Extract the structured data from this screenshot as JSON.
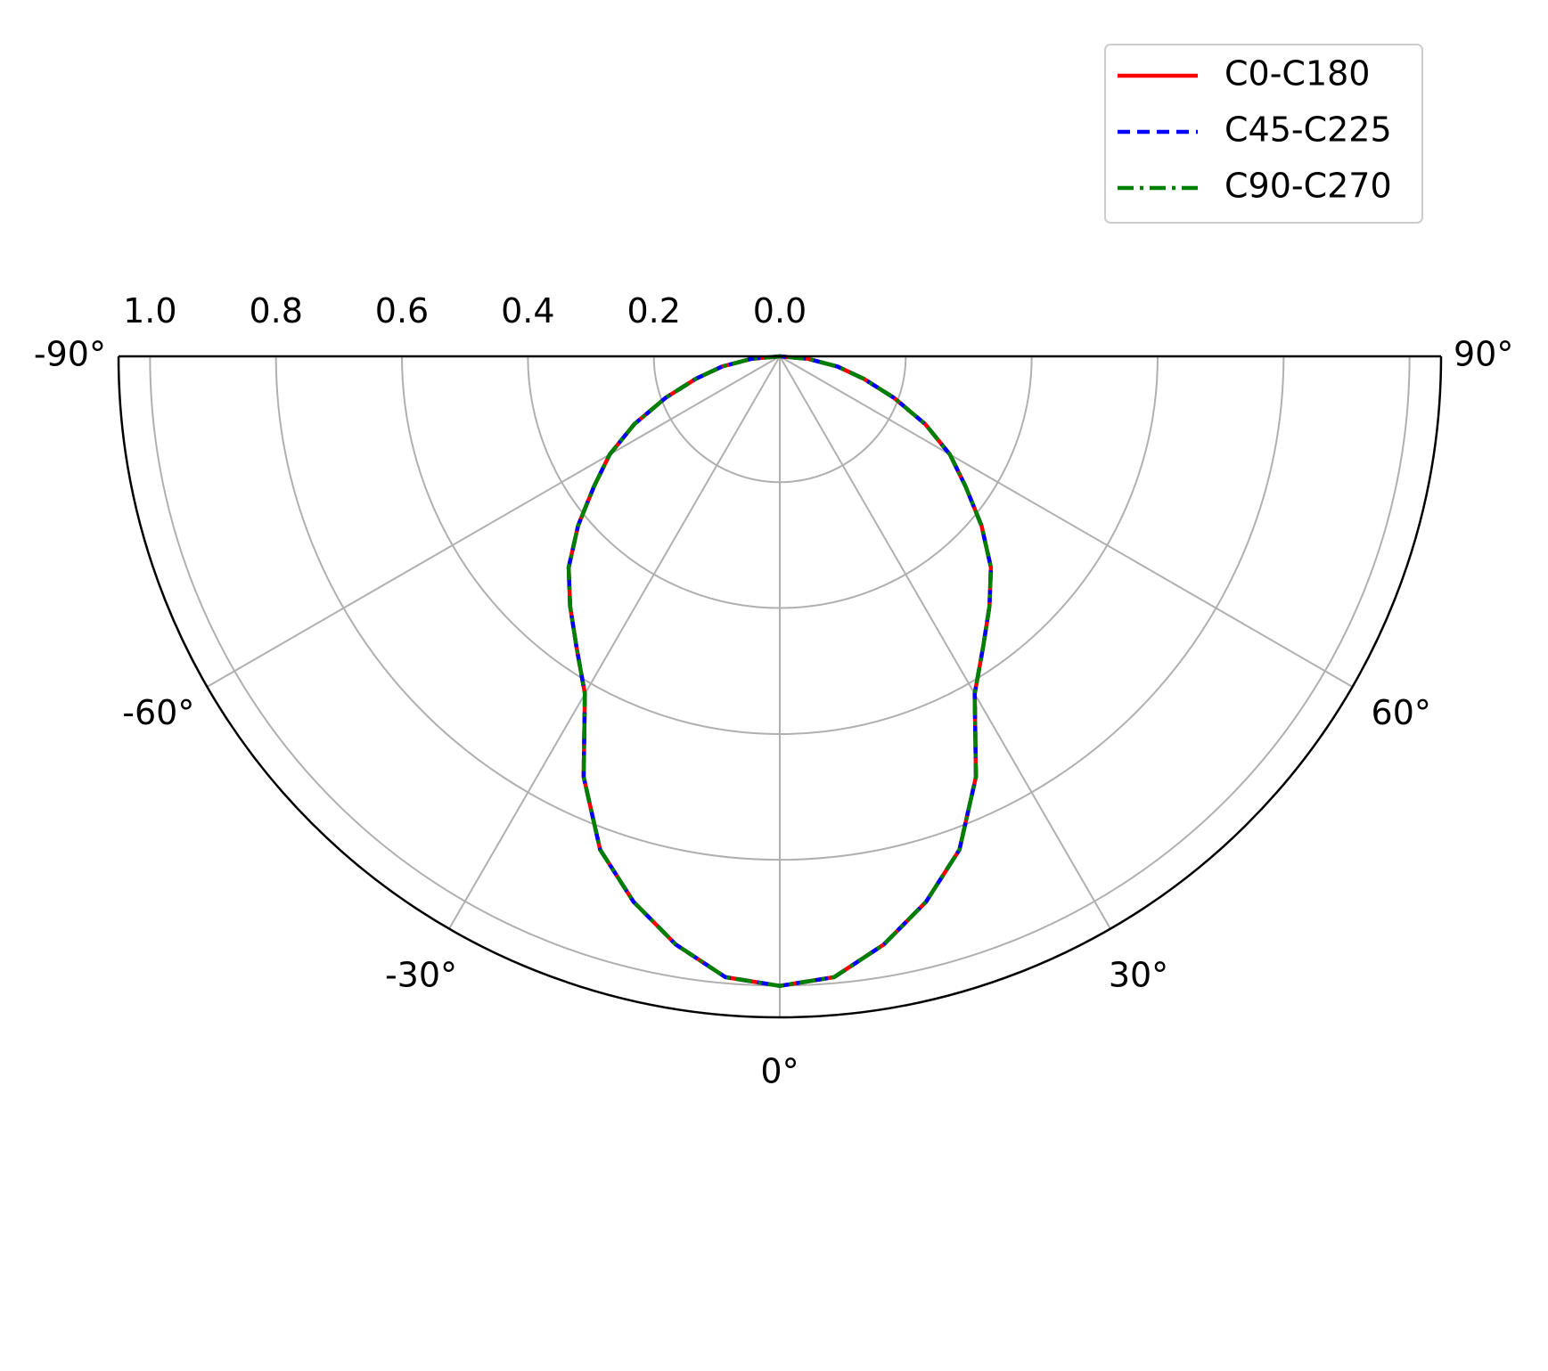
{
  "chart_data": {
    "type": "polar",
    "projection": "lower-half-polar",
    "theta_range_deg": [
      -90,
      90
    ],
    "theta_zero": "bottom",
    "r_range": [
      0,
      1.05
    ],
    "r_ticks": [
      0.0,
      0.2,
      0.4,
      0.6,
      0.8,
      1.0
    ],
    "r_tick_labels": [
      "0.0",
      "0.2",
      "0.4",
      "0.6",
      "0.8",
      "1.0"
    ],
    "theta_ticks": [
      -90,
      -60,
      -30,
      0,
      30,
      60,
      90
    ],
    "theta_tick_labels": [
      "-90°",
      "-60°",
      "-30°",
      "0°",
      "30°",
      "60°",
      "90°"
    ],
    "grid": true,
    "legend_position": "top-right",
    "theta_deg": [
      -90,
      -85,
      -80,
      -75,
      -70,
      -65,
      -60,
      -55,
      -50,
      -45,
      -40,
      -35,
      -30,
      -25,
      -20,
      -15,
      -10,
      -5,
      0,
      5,
      10,
      15,
      20,
      25,
      30,
      35,
      40,
      45,
      50,
      55,
      60,
      65,
      70,
      75,
      80,
      85,
      90
    ],
    "series": [
      {
        "name": "C0-C180",
        "color": "#ff0000",
        "line_style": "solid",
        "r": [
          0.0,
          0.045,
          0.093,
          0.138,
          0.193,
          0.255,
          0.312,
          0.36,
          0.418,
          0.474,
          0.518,
          0.563,
          0.619,
          0.737,
          0.834,
          0.897,
          0.949,
          0.99,
          1.0,
          0.99,
          0.949,
          0.897,
          0.834,
          0.737,
          0.619,
          0.563,
          0.518,
          0.474,
          0.418,
          0.36,
          0.312,
          0.255,
          0.193,
          0.138,
          0.093,
          0.045,
          0.0
        ]
      },
      {
        "name": "C45-C225",
        "color": "#0000ff",
        "line_style": "dashed",
        "r": [
          0.0,
          0.045,
          0.093,
          0.138,
          0.193,
          0.255,
          0.312,
          0.36,
          0.418,
          0.474,
          0.518,
          0.563,
          0.619,
          0.737,
          0.834,
          0.897,
          0.949,
          0.99,
          1.0,
          0.99,
          0.949,
          0.897,
          0.834,
          0.737,
          0.619,
          0.563,
          0.518,
          0.474,
          0.418,
          0.36,
          0.312,
          0.255,
          0.193,
          0.138,
          0.093,
          0.045,
          0.0
        ]
      },
      {
        "name": "C90-C270",
        "color": "#008000",
        "line_style": "dashdot",
        "r": [
          0.0,
          0.045,
          0.093,
          0.138,
          0.193,
          0.255,
          0.312,
          0.36,
          0.418,
          0.474,
          0.518,
          0.563,
          0.619,
          0.737,
          0.834,
          0.897,
          0.949,
          0.99,
          1.0,
          0.99,
          0.949,
          0.897,
          0.834,
          0.737,
          0.619,
          0.563,
          0.518,
          0.474,
          0.418,
          0.36,
          0.312,
          0.255,
          0.193,
          0.138,
          0.093,
          0.045,
          0.0
        ]
      }
    ]
  }
}
